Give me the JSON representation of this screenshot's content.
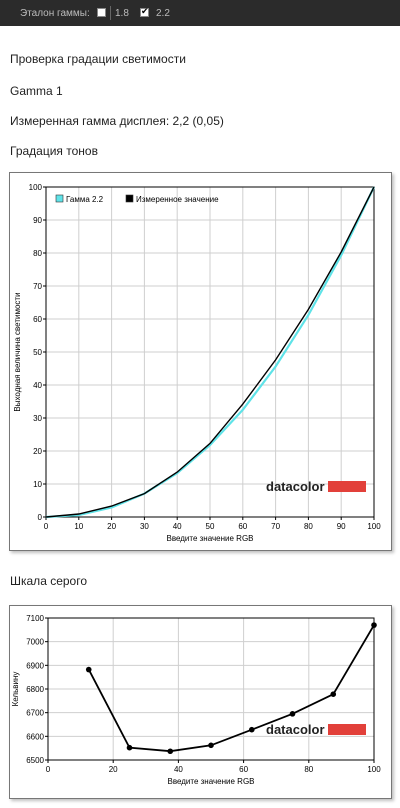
{
  "toolbar": {
    "gamma_label": "Эталон гаммы:",
    "options": [
      {
        "label": "1.8",
        "checked": false
      },
      {
        "label": "2.2",
        "checked": true
      }
    ]
  },
  "page": {
    "heading": "Проверка градации светимости",
    "profile_name": "Gamma 1",
    "measured_gamma": "Измеренная гамма дисплея: 2,2 (0,05)",
    "tonal_heading": "Градация тонов",
    "gray_heading": "Шкала серого"
  },
  "colors": {
    "reference": "#5fe3e8",
    "measured": "#000000",
    "brand": "#e2403a",
    "grid": "#cfcfcf"
  },
  "chart_data": [
    {
      "type": "line",
      "xlabel": "Введите значение RGB",
      "ylabel": "Выходная величина светимости",
      "xlim": [
        0,
        100
      ],
      "ylim": [
        0,
        100
      ],
      "xticks": [
        0,
        10,
        20,
        30,
        40,
        50,
        60,
        70,
        80,
        90,
        100
      ],
      "yticks": [
        0,
        10,
        20,
        30,
        40,
        50,
        60,
        70,
        80,
        90,
        100
      ],
      "grid": true,
      "legend_position": "top-left",
      "watermark": "datacolor",
      "series": [
        {
          "name": "Гамма 2.2",
          "color": "#5fe3e8",
          "x": [
            0,
            10,
            20,
            30,
            40,
            50,
            60,
            70,
            80,
            90,
            100
          ],
          "y": [
            0,
            0.6,
            2.9,
            7.1,
            13.3,
            21.8,
            32.5,
            45.6,
            61.2,
            79.3,
            100
          ]
        },
        {
          "name": "Измеренное значение",
          "color": "#000000",
          "x": [
            0,
            10,
            20,
            30,
            40,
            50,
            60,
            70,
            80,
            90,
            100
          ],
          "y": [
            0,
            0.9,
            3.3,
            7.1,
            13.6,
            22.3,
            34.2,
            47.6,
            62.9,
            80.3,
            100
          ]
        }
      ]
    },
    {
      "type": "line",
      "xlabel": "Введите значение RGB",
      "ylabel": "Кельвину",
      "xlim": [
        0,
        100
      ],
      "ylim": [
        6500,
        7100
      ],
      "xticks": [
        0,
        20,
        40,
        60,
        80,
        100
      ],
      "yticks": [
        6500,
        6600,
        6700,
        6800,
        6900,
        7000,
        7100
      ],
      "grid": true,
      "watermark": "datacolor",
      "series": [
        {
          "x": [
            12.5,
            25,
            37.5,
            50,
            62.5,
            75,
            87.5,
            100
          ],
          "y": [
            6882,
            6552,
            6537,
            6562,
            6628,
            6695,
            6778,
            7070
          ]
        }
      ]
    }
  ]
}
